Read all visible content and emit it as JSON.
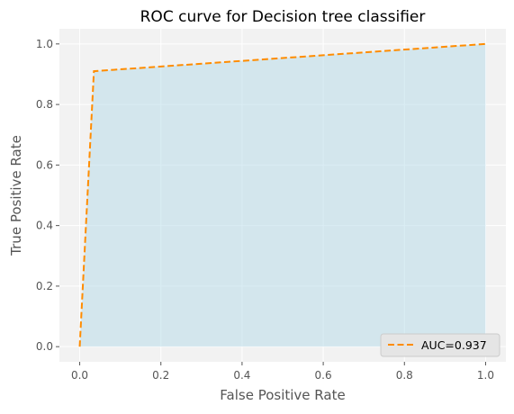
{
  "chart_data": {
    "type": "line",
    "title": "ROC curve for Decision tree classifier",
    "xlabel": "False Positive Rate",
    "ylabel": "True Positive Rate",
    "xlim": [
      -0.05,
      1.05
    ],
    "ylim": [
      -0.05,
      1.05
    ],
    "xticks": [
      0.0,
      0.2,
      0.4,
      0.6,
      0.8,
      1.0
    ],
    "yticks": [
      0.0,
      0.2,
      0.4,
      0.6,
      0.8,
      1.0
    ],
    "xtick_labels": [
      "0.0",
      "0.2",
      "0.4",
      "0.6",
      "0.8",
      "1.0"
    ],
    "ytick_labels": [
      "0.0",
      "0.2",
      "0.4",
      "0.6",
      "0.8",
      "1.0"
    ],
    "grid": true,
    "legend_position": "lower-right",
    "series": [
      {
        "name": "AUC=0.937",
        "x": [
          0.0,
          0.035,
          1.0
        ],
        "y": [
          0.0,
          0.91,
          1.0
        ],
        "line_style": "dashed",
        "fill_under": true
      }
    ],
    "colors": {
      "line": "#ff8c00",
      "fill": "#add8e6",
      "plot_background": "#f2f2f2",
      "grid": "#ffffff"
    }
  }
}
